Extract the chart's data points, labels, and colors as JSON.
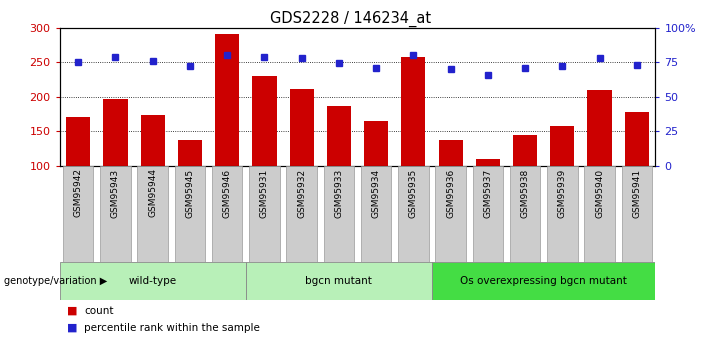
{
  "title": "GDS2228 / 146234_at",
  "samples": [
    "GSM95942",
    "GSM95943",
    "GSM95944",
    "GSM95945",
    "GSM95946",
    "GSM95931",
    "GSM95932",
    "GSM95933",
    "GSM95934",
    "GSM95935",
    "GSM95936",
    "GSM95937",
    "GSM95938",
    "GSM95939",
    "GSM95940",
    "GSM95941"
  ],
  "counts": [
    170,
    197,
    174,
    137,
    290,
    230,
    211,
    186,
    165,
    257,
    137,
    110,
    145,
    158,
    210,
    177
  ],
  "percentiles": [
    75,
    79,
    76,
    72,
    80,
    79,
    78,
    74,
    71,
    80,
    70,
    66,
    71,
    72,
    78,
    73
  ],
  "group_boundaries": [
    {
      "label": "wild-type",
      "start": 0,
      "end": 5,
      "color": "#b8f0b8"
    },
    {
      "label": "bgcn mutant",
      "start": 5,
      "end": 10,
      "color": "#b8f0b8"
    },
    {
      "label": "Os overexpressing bgcn mutant",
      "start": 10,
      "end": 16,
      "color": "#44dd44"
    }
  ],
  "ylim_left": [
    100,
    300
  ],
  "ylim_right": [
    0,
    100
  ],
  "bar_color": "#cc0000",
  "dot_color": "#2222cc",
  "left_yticks": [
    100,
    150,
    200,
    250,
    300
  ],
  "right_yticks": [
    0,
    25,
    50,
    75,
    100
  ],
  "tick_color_left": "#cc0000",
  "tick_color_right": "#2222cc",
  "legend_count_label": "count",
  "legend_percentile_label": "percentile rank within the sample",
  "bar_width": 0.65,
  "xtick_bg_color": "#cccccc",
  "xtick_border_color": "#999999"
}
